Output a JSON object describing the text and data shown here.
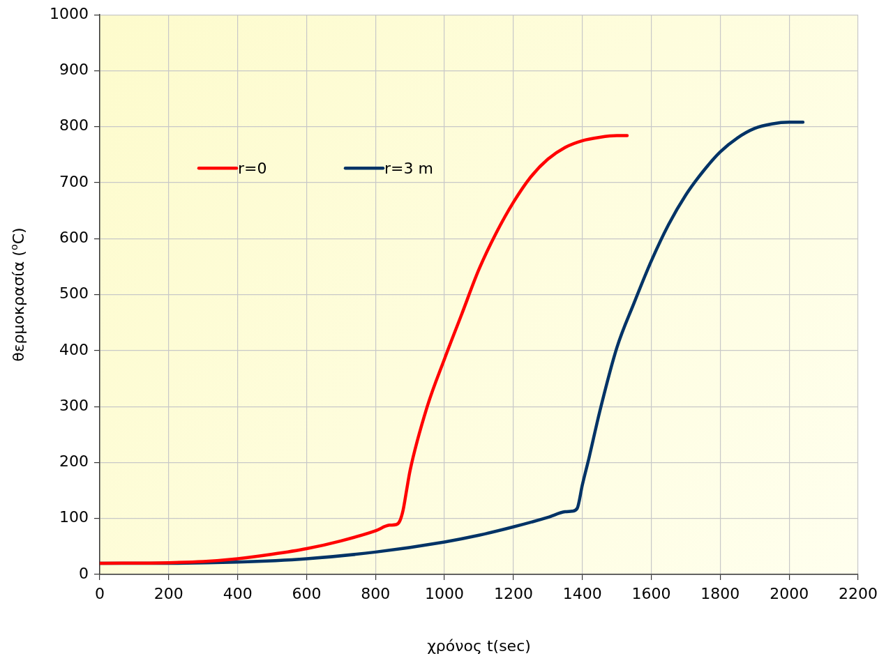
{
  "chart_data": {
    "type": "line",
    "xlabel": "χρόνος t(sec)",
    "ylabel": "θερμοκρασία ($^{o}$C)",
    "xlim": [
      0,
      2200
    ],
    "xticks": [
      0,
      200,
      400,
      600,
      800,
      1000,
      1200,
      1400,
      1600,
      1800,
      2000,
      2200
    ],
    "ylim": [
      0,
      1000
    ],
    "yticks": [
      0,
      100,
      200,
      300,
      400,
      500,
      600,
      700,
      800,
      900,
      1000
    ],
    "grid": true,
    "legend": "top left",
    "marker": "none",
    "line_style": "solid",
    "series": [
      {
        "name": "r=0",
        "color": "#ff0000",
        "x": [
          0,
          200,
          300,
          400,
          500,
          600,
          700,
          800,
          840,
          860,
          870,
          880,
          890,
          900,
          950,
          1000,
          1050,
          1100,
          1150,
          1200,
          1250,
          1300,
          1350,
          1400,
          1450,
          1500,
          1530
        ],
        "values": [
          20,
          21,
          23,
          28,
          36,
          46,
          60,
          78,
          88,
          89,
          95,
          115,
          150,
          185,
          300,
          385,
          465,
          545,
          610,
          665,
          710,
          742,
          763,
          775,
          781,
          784,
          784
        ]
      },
      {
        "name": "r=3 m",
        "color": "#003366",
        "x": [
          0,
          200,
          400,
          600,
          800,
          1000,
          1100,
          1200,
          1300,
          1350,
          1370,
          1385,
          1400,
          1420,
          1450,
          1500,
          1550,
          1600,
          1650,
          1700,
          1750,
          1800,
          1850,
          1900,
          1950,
          2000,
          2040
        ],
        "values": [
          20,
          20,
          22,
          28,
          40,
          58,
          70,
          85,
          102,
          112,
          113,
          118,
          160,
          210,
          290,
          405,
          485,
          560,
          625,
          678,
          720,
          755,
          780,
          797,
          805,
          808,
          808
        ]
      }
    ]
  }
}
